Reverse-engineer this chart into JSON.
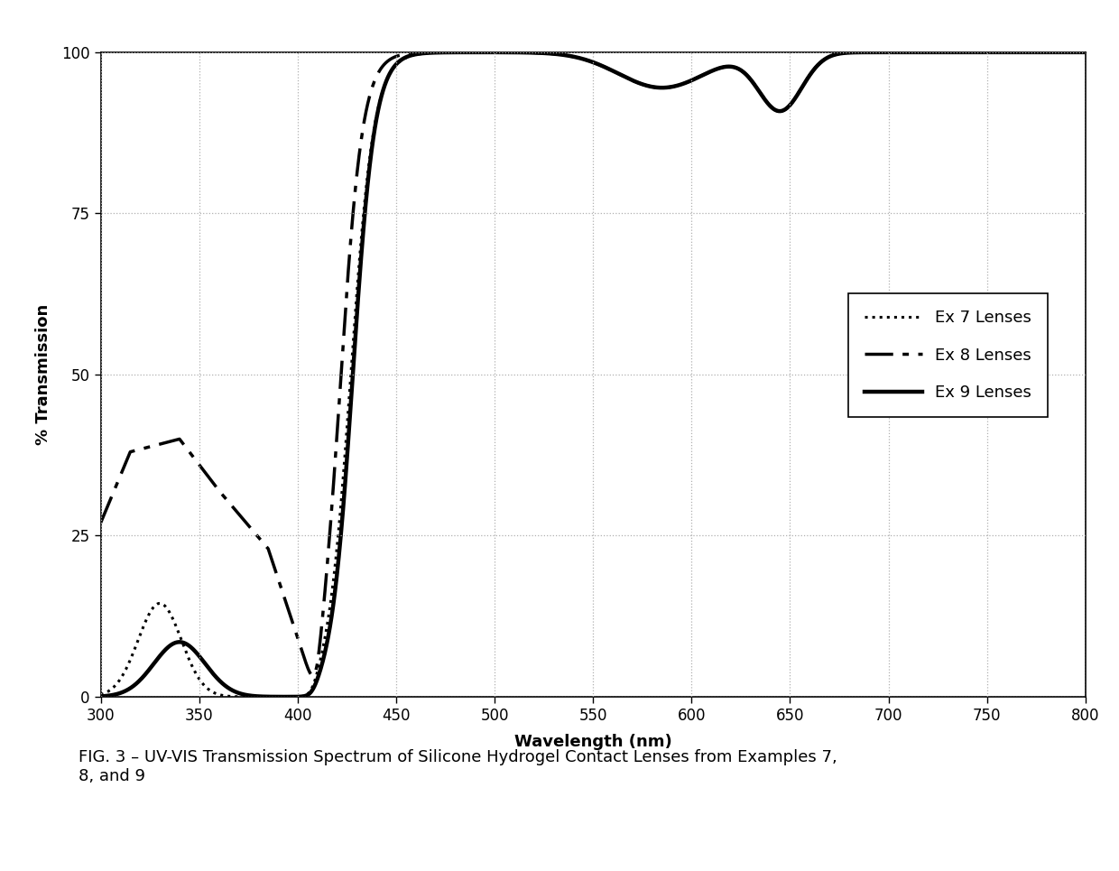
{
  "caption": "FIG. 3 – UV-VIS Transmission Spectrum of Silicone Hydrogel Contact Lenses from Examples 7,\n8, and 9",
  "xlabel": "Wavelength (nm)",
  "ylabel": "% Transmission",
  "xlim": [
    300,
    800
  ],
  "ylim": [
    0,
    100
  ],
  "xticks": [
    300,
    350,
    400,
    450,
    500,
    550,
    600,
    650,
    700,
    750,
    800
  ],
  "yticks": [
    0,
    25,
    50,
    75,
    100
  ],
  "legend_labels": [
    "Ex 7 Lenses",
    "Ex 8 Lenses",
    "Ex 9 Lenses"
  ],
  "background_color": "#ffffff",
  "line_color": "#000000",
  "grid_color": "#b0b0b0",
  "lw_dotted": 2.2,
  "lw_dashed": 2.5,
  "lw_solid": 3.2
}
